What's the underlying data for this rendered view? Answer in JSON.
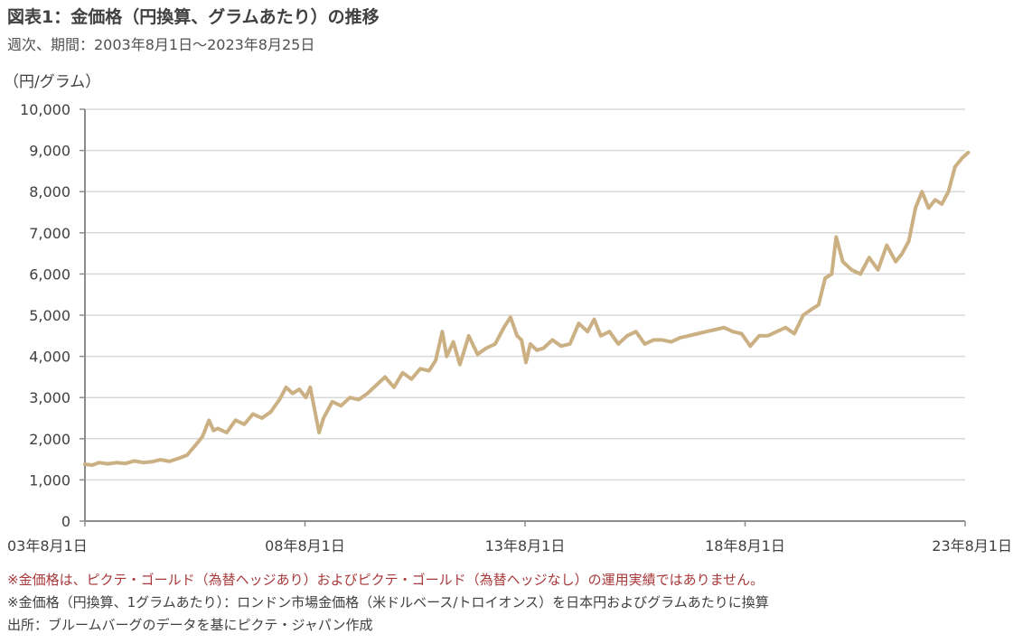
{
  "header": {
    "title": "図表1：金価格（円換算、グラムあたり）の推移",
    "subtitle": "週次、期間：2003年8月1日～2023年8月25日",
    "unit_label": "（円/グラム）"
  },
  "footnotes": {
    "disclaimer": "※金価格は、ピクテ・ゴールド（為替ヘッジあり）およびピクテ・ゴールド（為替ヘッジなし）の運用実績ではありません。",
    "definition": "※金価格（円換算、1グラムあたり）：ロンドン市場金価格（米ドルベース/トロイオンス）を日本円およびグラムあたりに換算",
    "source": "出所：ブルームバーグのデータを基にピクテ・ジャパン作成"
  },
  "colors": {
    "line": "#cbb083",
    "grid": "#d9d9d9",
    "axis": "#8c8c8c",
    "disclaimer_text": "#a8393b"
  },
  "chart_data": {
    "type": "line",
    "title": "金価格（円換算、グラムあたり）の推移",
    "xlabel": "",
    "ylabel": "円/グラム",
    "ylim": [
      0,
      10000
    ],
    "yticks": [
      0,
      1000,
      2000,
      3000,
      4000,
      5000,
      6000,
      7000,
      8000,
      9000,
      10000
    ],
    "ytick_labels": [
      "0",
      "1,000",
      "2,000",
      "3,000",
      "4,000",
      "5,000",
      "6,000",
      "7,000",
      "8,000",
      "9,000",
      "10,000"
    ],
    "xlim": [
      2003.58,
      2023.65
    ],
    "xticks": [
      2003.58,
      2008.58,
      2013.58,
      2018.58,
      2023.58
    ],
    "xtick_labels": [
      "03年8月1日",
      "08年8月1日",
      "13年8月1日",
      "18年8月1日",
      "23年8月1日"
    ],
    "grid": true,
    "legend": null,
    "series": [
      {
        "name": "金価格（円/グラム）",
        "x": [
          2003.58,
          2003.75,
          2003.9,
          2004.1,
          2004.3,
          2004.5,
          2004.7,
          2004.9,
          2005.1,
          2005.3,
          2005.5,
          2005.7,
          2005.9,
          2006.1,
          2006.25,
          2006.4,
          2006.5,
          2006.6,
          2006.8,
          2007.0,
          2007.2,
          2007.4,
          2007.6,
          2007.8,
          2008.0,
          2008.15,
          2008.3,
          2008.45,
          2008.6,
          2008.7,
          2008.8,
          2008.9,
          2009.0,
          2009.2,
          2009.4,
          2009.6,
          2009.8,
          2010.0,
          2010.2,
          2010.4,
          2010.6,
          2010.8,
          2011.0,
          2011.2,
          2011.4,
          2011.55,
          2011.7,
          2011.8,
          2011.95,
          2012.1,
          2012.3,
          2012.5,
          2012.7,
          2012.9,
          2013.1,
          2013.25,
          2013.4,
          2013.5,
          2013.6,
          2013.7,
          2013.85,
          2014.0,
          2014.2,
          2014.4,
          2014.6,
          2014.8,
          2015.0,
          2015.15,
          2015.3,
          2015.5,
          2015.7,
          2015.9,
          2016.1,
          2016.3,
          2016.5,
          2016.7,
          2016.9,
          2017.1,
          2017.3,
          2017.5,
          2017.7,
          2017.9,
          2018.1,
          2018.3,
          2018.5,
          2018.7,
          2018.9,
          2019.1,
          2019.3,
          2019.5,
          2019.7,
          2019.9,
          2020.1,
          2020.25,
          2020.4,
          2020.55,
          2020.65,
          2020.8,
          2021.0,
          2021.2,
          2021.4,
          2021.6,
          2021.8,
          2022.0,
          2022.15,
          2022.3,
          2022.45,
          2022.6,
          2022.75,
          2022.9,
          2023.05,
          2023.2,
          2023.35,
          2023.5,
          2023.65
        ],
        "values": [
          1380,
          1360,
          1420,
          1390,
          1420,
          1400,
          1460,
          1420,
          1440,
          1490,
          1450,
          1520,
          1600,
          1850,
          2050,
          2450,
          2200,
          2250,
          2150,
          2450,
          2350,
          2600,
          2500,
          2650,
          2950,
          3250,
          3100,
          3200,
          3000,
          3250,
          2700,
          2150,
          2500,
          2900,
          2800,
          3000,
          2950,
          3100,
          3300,
          3500,
          3250,
          3600,
          3450,
          3700,
          3650,
          3900,
          4600,
          4000,
          4350,
          3800,
          4500,
          4050,
          4200,
          4300,
          4700,
          4950,
          4500,
          4400,
          3850,
          4300,
          4150,
          4200,
          4400,
          4250,
          4300,
          4800,
          4600,
          4900,
          4500,
          4600,
          4300,
          4500,
          4600,
          4300,
          4400,
          4400,
          4350,
          4450,
          4500,
          4550,
          4600,
          4650,
          4700,
          4600,
          4550,
          4250,
          4500,
          4500,
          4600,
          4700,
          4550,
          5000,
          5150,
          5250,
          5900,
          6000,
          6900,
          6300,
          6100,
          6000,
          6400,
          6100,
          6700,
          6300,
          6500,
          6800,
          7600,
          8000,
          7600,
          7800,
          7700,
          8000,
          8600,
          8800,
          8950
        ]
      }
    ]
  }
}
